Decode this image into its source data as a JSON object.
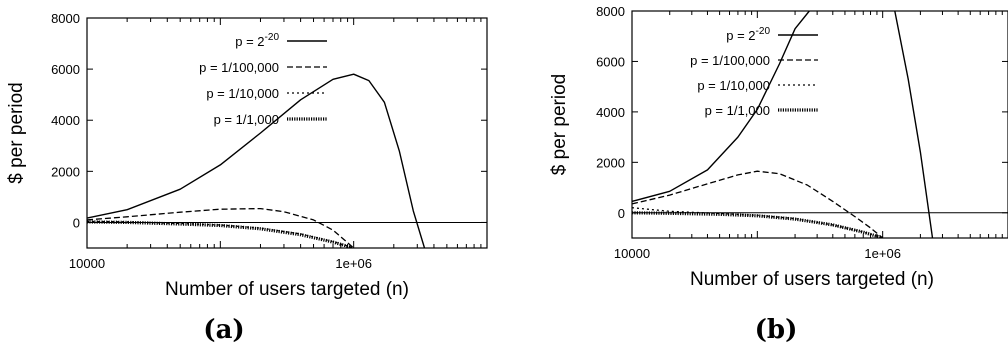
{
  "panels": [
    {
      "caption": "(a)",
      "chart_data": {
        "type": "line",
        "title": "",
        "xlabel": "Number of users targeted (n)",
        "ylabel": "$ per period",
        "x_scale": "log",
        "xlim": [
          10000,
          10000000
        ],
        "ylim": [
          -1000,
          8000
        ],
        "x_ticks": [
          10000,
          1000000
        ],
        "x_tick_labels": [
          "10000",
          "1e+06"
        ],
        "y_ticks": [
          0,
          2000,
          4000,
          6000,
          8000
        ],
        "y_tick_labels": [
          "0",
          "2000",
          "4000",
          "6000",
          "8000"
        ],
        "zero_line": true,
        "legend_position": "top-left",
        "series": [
          {
            "name": "p = 2^-20",
            "label_main": "p = 2",
            "label_sup": "-20",
            "style": "solid",
            "x": [
              10000,
              20000,
              50000,
              100000,
              200000,
              400000,
              700000,
              1000000,
              1300000,
              1700000,
              2200000,
              2800000,
              3400000
            ],
            "y": [
              170,
              500,
              1300,
              2250,
              3500,
              4800,
              5600,
              5800,
              5550,
              4700,
              2800,
              450,
              -1000
            ]
          },
          {
            "name": "p = 1/100,000",
            "label_main": "p = 1/100,000",
            "style": "dashed",
            "x": [
              10000,
              20000,
              50000,
              100000,
              200000,
              300000,
              500000,
              700000,
              1000000
            ],
            "y": [
              100,
              220,
              400,
              520,
              540,
              420,
              100,
              -300,
              -1000
            ]
          },
          {
            "name": "p = 1/10,000",
            "label_main": "p = 1/10,000",
            "style": "dotted",
            "x": [
              10000,
              20000,
              50000,
              100000,
              200000,
              400000,
              700000,
              1000000
            ],
            "y": [
              40,
              20,
              -40,
              -100,
              -220,
              -450,
              -750,
              -1000
            ]
          },
          {
            "name": "p = 1/1,000",
            "label_main": "p = 1/1,000",
            "style": "thick-dotted",
            "x": [
              10000,
              20000,
              50000,
              100000,
              200000,
              400000,
              700000,
              1000000
            ],
            "y": [
              20,
              0,
              -60,
              -120,
              -250,
              -480,
              -770,
              -1000
            ]
          }
        ]
      }
    },
    {
      "caption": "(b)",
      "chart_data": {
        "type": "line",
        "title": "",
        "xlabel": "Number of users targeted (n)",
        "ylabel": "$ per period",
        "x_scale": "log",
        "xlim": [
          10000,
          10000000
        ],
        "ylim": [
          -1000,
          8000
        ],
        "x_ticks": [
          10000,
          1000000
        ],
        "x_tick_labels": [
          "10000",
          "1e+06"
        ],
        "y_ticks": [
          0,
          2000,
          4000,
          6000,
          8000
        ],
        "y_tick_labels": [
          "0",
          "2000",
          "4000",
          "6000",
          "8000"
        ],
        "zero_line": true,
        "legend_position": "top-left",
        "series": [
          {
            "name": "p = 2^-20",
            "label_main": "p = 2",
            "label_sup": "-20",
            "style": "solid",
            "segments": [
              {
                "x": [
                  10000,
                  20000,
                  40000,
                  70000,
                  100000,
                  150000,
                  200000,
                  260000
                ],
                "y": [
                  450,
                  850,
                  1700,
                  3000,
                  4100,
                  5900,
                  7300,
                  8000
                ]
              },
              {
                "x": [
                  1250000,
                  1600000,
                  2000000,
                  2500000
                ],
                "y": [
                  8000,
                  5300,
                  2400,
                  -1000
                ]
              }
            ]
          },
          {
            "name": "p = 1/100,000",
            "label_main": "p = 1/100,000",
            "style": "dashed",
            "x": [
              10000,
              20000,
              40000,
              70000,
              100000,
              150000,
              250000,
              400000,
              600000,
              800000,
              1000000
            ],
            "y": [
              350,
              700,
              1150,
              1500,
              1650,
              1550,
              1100,
              450,
              -150,
              -600,
              -1000
            ]
          },
          {
            "name": "p = 1/10,000",
            "label_main": "p = 1/10,000",
            "style": "dotted",
            "x": [
              10000,
              20000,
              50000,
              100000,
              200000,
              400000,
              700000,
              1000000
            ],
            "y": [
              200,
              60,
              -30,
              -100,
              -230,
              -480,
              -760,
              -1000
            ]
          },
          {
            "name": "p = 1/1,000",
            "label_main": "p = 1/1,000",
            "style": "thick-dotted",
            "x": [
              10000,
              20000,
              50000,
              100000,
              200000,
              400000,
              700000,
              1000000
            ],
            "y": [
              0,
              -20,
              -60,
              -120,
              -250,
              -480,
              -770,
              -1000
            ]
          }
        ]
      }
    }
  ]
}
